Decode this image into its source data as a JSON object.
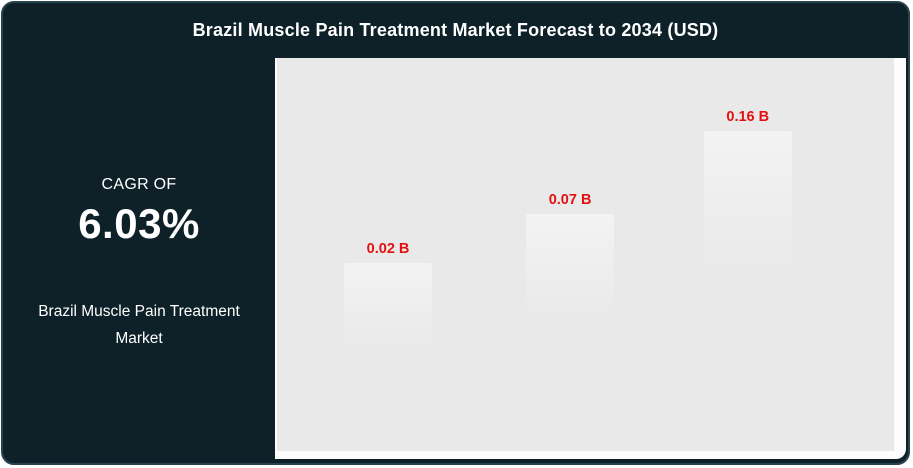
{
  "header": {
    "title": "Brazil Muscle Pain Treatment Market Forecast to 2034 (USD)"
  },
  "sidebar": {
    "cagr_label": "CAGR OF",
    "cagr_value": "6.03%",
    "market_name": "Brazil Muscle Pain Treatment Market"
  },
  "colors": {
    "card_background": "#0e2129",
    "plot_background": "#e9e9e9",
    "data_label_red": "#e31111",
    "title_text": "#ffffff"
  },
  "chart_data": {
    "type": "bar",
    "title": "Brazil Muscle Pain Treatment Market Forecast to 2034 (USD)",
    "value_unit": "B",
    "values": [
      0.02,
      0.07,
      0.16
    ],
    "labels": [
      "0.02 B",
      "0.07 B",
      "0.16 B"
    ],
    "legend": "none",
    "grid": false,
    "axes_visible": false,
    "bars_visible": false,
    "points": [
      {
        "label": "0.02 B",
        "value": 0.02,
        "x_pct": 18.0,
        "y_pct": 48.7
      },
      {
        "label": "0.07 B",
        "value": 0.07,
        "x_pct": 47.5,
        "y_pct": 36.2
      },
      {
        "label": "0.16 B",
        "value": 0.16,
        "x_pct": 76.3,
        "y_pct": 15.1
      }
    ]
  }
}
